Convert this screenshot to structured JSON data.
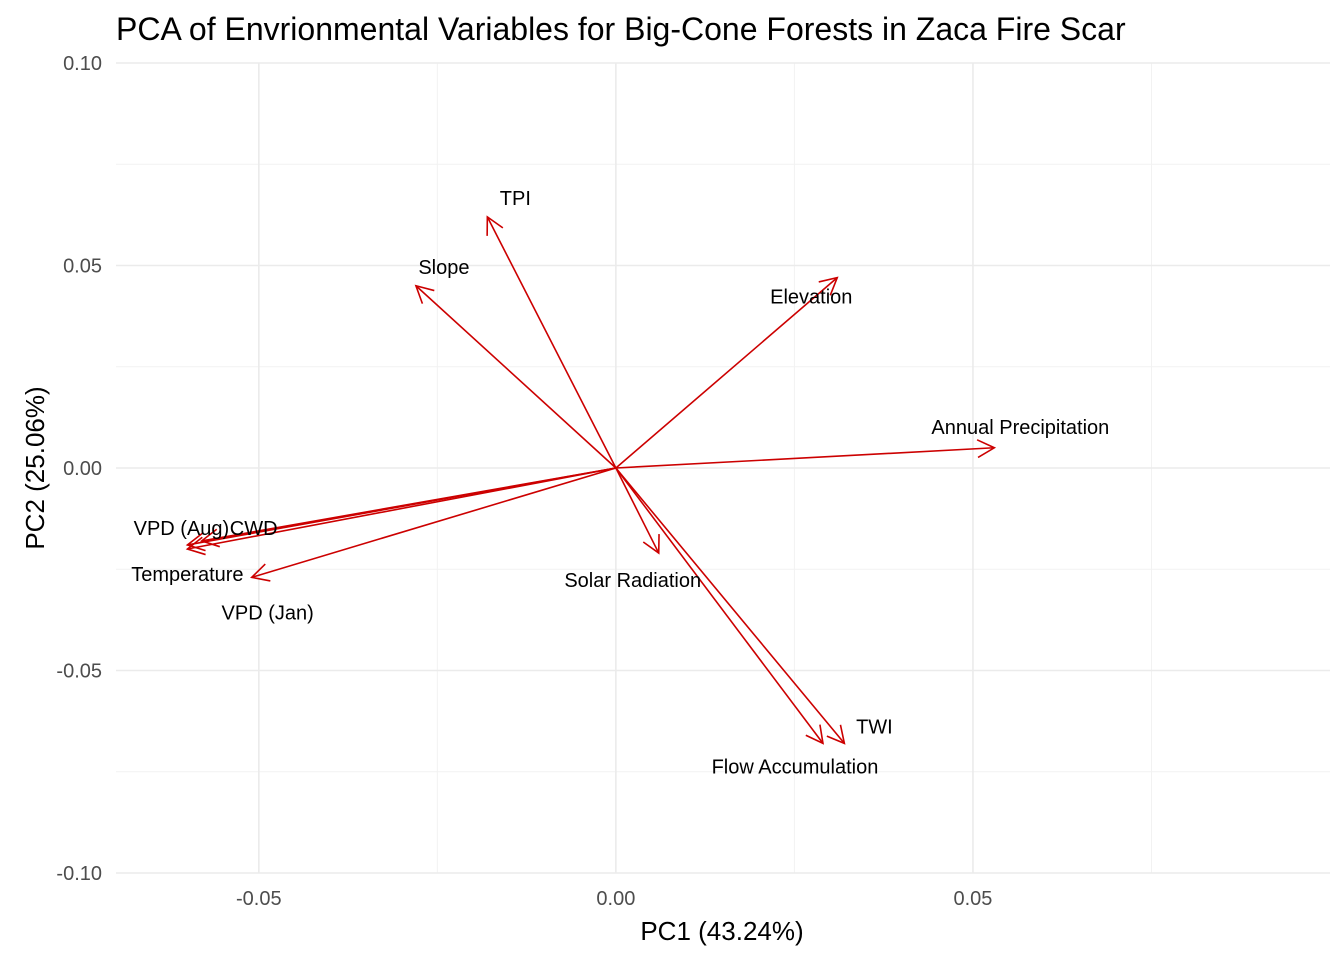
{
  "chart_data": {
    "type": "biplot",
    "title": "PCA of Envrionmental Variables for Big-Cone Forests in Zaca Fire Scar",
    "xlabel": "PC1 (43.24%)",
    "ylabel": "PC2 (25.06%)",
    "xlim": [
      -0.07,
      0.1
    ],
    "ylim": [
      -0.1,
      0.1
    ],
    "x_ticks": [
      -0.05,
      0.0,
      0.05
    ],
    "x_tick_labels": [
      "-0.05",
      "0.00",
      "0.05"
    ],
    "y_ticks": [
      -0.1,
      -0.05,
      0.0,
      0.05,
      0.1
    ],
    "y_tick_labels": [
      "-0.10",
      "-0.05",
      "0.00",
      "0.05",
      "0.10"
    ],
    "grid": true,
    "arrow_color": "#cc0000",
    "vectors": [
      {
        "name": "TPI",
        "x": -0.018,
        "y": 0.062
      },
      {
        "name": "Slope",
        "x": -0.028,
        "y": 0.045
      },
      {
        "name": "Elevation",
        "x": 0.031,
        "y": 0.047
      },
      {
        "name": "Annual Precipitation",
        "x": 0.053,
        "y": 0.005
      },
      {
        "name": "VPD (Aug)",
        "x": -0.06,
        "y": -0.019
      },
      {
        "name": "CWD",
        "x": -0.058,
        "y": -0.018
      },
      {
        "name": "Temperature",
        "x": -0.06,
        "y": -0.02
      },
      {
        "name": "VPD (Jan)",
        "x": -0.051,
        "y": -0.027
      },
      {
        "name": "Solar Radiation",
        "x": 0.006,
        "y": -0.021
      },
      {
        "name": "TWI",
        "x": 0.032,
        "y": -0.068
      },
      {
        "name": "Flow Accumulation",
        "x": 0.029,
        "y": -0.068
      }
    ]
  }
}
